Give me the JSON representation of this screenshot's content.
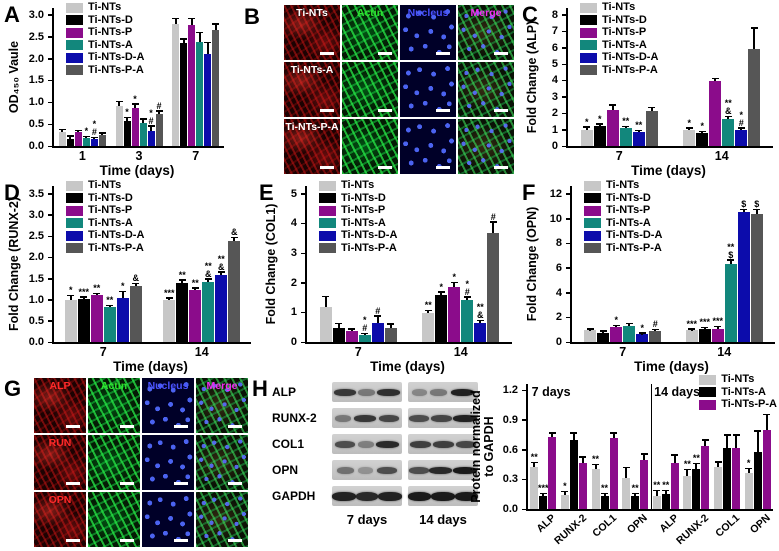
{
  "letters": {
    "A": "A",
    "B": "B",
    "C": "C",
    "D": "D",
    "E": "E",
    "F": "F",
    "G": "G",
    "H": "H"
  },
  "group_colors": {
    "Ti-NTs": "#c7c7c7",
    "Ti-NTs-D": "#000000",
    "Ti-NTs-P": "#8b0c8b",
    "Ti-NTs-A": "#12877c",
    "Ti-NTs-D-A": "#0c0cab",
    "Ti-NTs-P-A": "#565656"
  },
  "chart_data": [
    {
      "id": "A",
      "type": "bar",
      "title": "",
      "xlabel": "Time (days)",
      "ylabel": "OD₄₅₀ Vaule",
      "categories": [
        "1",
        "3",
        "7"
      ],
      "yticks": [
        "0.0",
        "0.5",
        "1.0",
        "1.5",
        "2.0",
        "2.5",
        "3.0"
      ],
      "ylim": [
        0,
        3.0
      ],
      "legend_pos": "top-left",
      "grid": false,
      "series": [
        {
          "name": "Ti-NTs",
          "color": "#c7c7c7",
          "values": [
            0.33,
            0.92,
            2.8
          ],
          "err": [
            0.03,
            0.08,
            0.1
          ],
          "markers": [
            "",
            "",
            ""
          ]
        },
        {
          "name": "Ti-NTs-D",
          "color": "#000000",
          "values": [
            0.17,
            0.57,
            2.35
          ],
          "err": [
            0.04,
            0.06,
            0.08
          ],
          "markers": [
            "",
            "*",
            ""
          ]
        },
        {
          "name": "Ti-NTs-P",
          "color": "#8b0c8b",
          "values": [
            0.31,
            0.88,
            2.78
          ],
          "err": [
            0.03,
            0.06,
            0.12
          ],
          "markers": [
            "",
            "*",
            ""
          ]
        },
        {
          "name": "Ti-NTs-A",
          "color": "#12877c",
          "values": [
            0.18,
            0.53,
            2.38
          ],
          "err": [
            0.02,
            0.07,
            0.2
          ],
          "markers": [
            "*",
            "",
            ""
          ]
        },
        {
          "name": "Ti-NTs-D-A",
          "color": "#0c0cab",
          "values": [
            0.15,
            0.35,
            2.1
          ],
          "err": [
            0.03,
            0.09,
            0.25
          ],
          "markers": [
            "*\n#",
            "*\n#",
            ""
          ]
        },
        {
          "name": "Ti-NTs-P-A",
          "color": "#565656",
          "values": [
            0.26,
            0.73,
            2.65
          ],
          "err": [
            0.02,
            0.05,
            0.13
          ],
          "markers": [
            "",
            "#",
            ""
          ]
        }
      ]
    },
    {
      "id": "C",
      "type": "bar",
      "title": "",
      "xlabel": "Time (days)",
      "ylabel": "Fold Change (ALP)",
      "categories": [
        "7",
        "14"
      ],
      "yticks": [
        "0",
        "1",
        "2",
        "3",
        "4",
        "5",
        "6",
        "7",
        "8"
      ],
      "ylim": [
        0,
        8
      ],
      "legend_pos": "top-left",
      "grid": false,
      "series": [
        {
          "name": "Ti-NTs",
          "color": "#c7c7c7",
          "values": [
            1.0,
            0.95
          ],
          "err": [
            0.12,
            0.1
          ],
          "markers": [
            "*",
            "*"
          ]
        },
        {
          "name": "Ti-NTs-D",
          "color": "#000000",
          "values": [
            1.2,
            0.8
          ],
          "err": [
            0.1,
            0.05
          ],
          "markers": [
            "*",
            "*"
          ]
        },
        {
          "name": "Ti-NTs-P",
          "color": "#8b0c8b",
          "values": [
            2.2,
            3.98
          ],
          "err": [
            0.25,
            0.08
          ],
          "markers": [
            "",
            ""
          ]
        },
        {
          "name": "Ti-NTs-A",
          "color": "#12877c",
          "values": [
            1.1,
            1.63
          ],
          "err": [
            0.05,
            0.12
          ],
          "markers": [
            "**",
            "**\n&"
          ]
        },
        {
          "name": "Ti-NTs-D-A",
          "color": "#0c0cab",
          "values": [
            0.85,
            0.95
          ],
          "err": [
            0.04,
            0.1
          ],
          "markers": [
            "**",
            "*\n#"
          ]
        },
        {
          "name": "Ti-NTs-P-A",
          "color": "#565656",
          "values": [
            2.15,
            5.95
          ],
          "err": [
            0.15,
            1.2
          ],
          "markers": [
            "",
            ""
          ]
        }
      ]
    },
    {
      "id": "D",
      "type": "bar",
      "title": "",
      "xlabel": "Time (days)",
      "ylabel": "Fold Change (RUNX-2)",
      "categories": [
        "7",
        "14"
      ],
      "yticks": [
        "0.0",
        "0.5",
        "1.0",
        "1.5",
        "2.0",
        "2.5",
        "3.0",
        "3.5"
      ],
      "ylim": [
        0,
        3.5
      ],
      "legend_pos": "top-left",
      "grid": false,
      "series": [
        {
          "name": "Ti-NTs",
          "color": "#c7c7c7",
          "values": [
            1.0,
            1.0
          ],
          "err": [
            0.08,
            0.02
          ],
          "markers": [
            "*",
            "***"
          ]
        },
        {
          "name": "Ti-NTs-D",
          "color": "#000000",
          "values": [
            1.02,
            1.4
          ],
          "err": [
            0.02,
            0.05
          ],
          "markers": [
            "***",
            "**"
          ]
        },
        {
          "name": "Ti-NTs-P",
          "color": "#8b0c8b",
          "values": [
            1.1,
            1.22
          ],
          "err": [
            0.03,
            0.04
          ],
          "markers": [
            "**",
            "**"
          ]
        },
        {
          "name": "Ti-NTs-A",
          "color": "#12877c",
          "values": [
            0.82,
            1.42
          ],
          "err": [
            0.03,
            0.05
          ],
          "markers": [
            "**",
            "**\n&"
          ]
        },
        {
          "name": "Ti-NTs-D-A",
          "color": "#0c0cab",
          "values": [
            1.05,
            1.58
          ],
          "err": [
            0.12,
            0.05
          ],
          "markers": [
            "*",
            "**\n&"
          ]
        },
        {
          "name": "Ti-NTs-P-A",
          "color": "#565656",
          "values": [
            1.33,
            2.38
          ],
          "err": [
            0.04,
            0.07
          ],
          "markers": [
            "&",
            "&"
          ]
        }
      ]
    },
    {
      "id": "E",
      "type": "bar",
      "title": "",
      "xlabel": "Time (days)",
      "ylabel": "Fold Change (COL1)",
      "categories": [
        "7",
        "14"
      ],
      "yticks": [
        "0",
        "1",
        "2",
        "3",
        "4",
        "5"
      ],
      "ylim": [
        0,
        5
      ],
      "legend_pos": "top-left",
      "grid": false,
      "series": [
        {
          "name": "Ti-NTs",
          "color": "#c7c7c7",
          "values": [
            1.18,
            0.98
          ],
          "err": [
            0.33,
            0.05
          ],
          "markers": [
            "",
            "**"
          ]
        },
        {
          "name": "Ti-NTs-D",
          "color": "#000000",
          "values": [
            0.48,
            1.57
          ],
          "err": [
            0.12,
            0.1
          ],
          "markers": [
            "",
            "*"
          ]
        },
        {
          "name": "Ti-NTs-P",
          "color": "#8b0c8b",
          "values": [
            0.37,
            1.85
          ],
          "err": [
            0.05,
            0.13
          ],
          "markers": [
            "",
            "*"
          ]
        },
        {
          "name": "Ti-NTs-A",
          "color": "#12877c",
          "values": [
            0.22,
            1.42
          ],
          "err": [
            0.05,
            0.08
          ],
          "markers": [
            "*\n#",
            "*\n#"
          ]
        },
        {
          "name": "Ti-NTs-D-A",
          "color": "#0c0cab",
          "values": [
            0.65,
            0.65
          ],
          "err": [
            0.2,
            0.05
          ],
          "markers": [
            "#",
            "**\n&"
          ]
        },
        {
          "name": "Ti-NTs-P-A",
          "color": "#565656",
          "values": [
            0.48,
            3.68
          ],
          "err": [
            0.1,
            0.35
          ],
          "markers": [
            "",
            "#"
          ]
        }
      ]
    },
    {
      "id": "F",
      "type": "bar",
      "title": "",
      "xlabel": "Time (days)",
      "ylabel": "Fold Change (OPN)",
      "categories": [
        "7",
        "14"
      ],
      "yticks": [
        "0",
        "2",
        "4",
        "6",
        "8",
        "10",
        "12"
      ],
      "ylim": [
        0,
        12
      ],
      "legend_pos": "top-left",
      "grid": false,
      "series": [
        {
          "name": "Ti-NTs",
          "color": "#c7c7c7",
          "values": [
            0.95,
            0.95
          ],
          "err": [
            0.05,
            0.05
          ],
          "markers": [
            "",
            "***"
          ]
        },
        {
          "name": "Ti-NTs-D",
          "color": "#000000",
          "values": [
            0.75,
            1.05
          ],
          "err": [
            0.1,
            0.05
          ],
          "markers": [
            "",
            "***"
          ]
        },
        {
          "name": "Ti-NTs-P",
          "color": "#8b0c8b",
          "values": [
            1.2,
            1.05
          ],
          "err": [
            0.07,
            0.15
          ],
          "markers": [
            "*",
            "***"
          ]
        },
        {
          "name": "Ti-NTs-A",
          "color": "#12877c",
          "values": [
            1.3,
            6.3
          ],
          "err": [
            0.15,
            0.3
          ],
          "markers": [
            "",
            "**\n$"
          ]
        },
        {
          "name": "Ti-NTs-D-A",
          "color": "#0c0cab",
          "values": [
            0.62,
            10.5
          ],
          "err": [
            0.05,
            0.15
          ],
          "markers": [
            "*",
            "$"
          ]
        },
        {
          "name": "Ti-NTs-P-A",
          "color": "#565656",
          "values": [
            0.9,
            10.4
          ],
          "err": [
            0.07,
            0.25
          ],
          "markers": [
            "#",
            "$"
          ]
        }
      ]
    },
    {
      "id": "H",
      "type": "bar",
      "title": "",
      "xlabel": "",
      "ylabel": "Protein normalized\nto GAPDH",
      "categories": [
        "ALP",
        "RUNX-2",
        "COL1",
        "OPN",
        "ALP",
        "RUNX-2",
        "COL1",
        "OPN"
      ],
      "sections": [
        {
          "label": "7 days",
          "span": 4
        },
        {
          "label": "14 days",
          "span": 4
        }
      ],
      "yticks": [
        "0.0",
        "0.3",
        "0.6",
        "0.9",
        "1.2"
      ],
      "ylim": [
        0,
        1.2
      ],
      "legend_pos": "top-right",
      "grid": false,
      "series": [
        {
          "name": "Ti-NTs",
          "color": "#c7c7c7",
          "values": [
            0.42,
            0.14,
            0.4,
            0.31,
            0.13,
            0.33,
            0.42,
            0.36
          ],
          "err": [
            0.04,
            0.03,
            0.04,
            0.1,
            0.05,
            0.06,
            0.05,
            0.04
          ],
          "markers": [
            "**",
            "*",
            "**",
            "",
            "**",
            "**",
            "",
            "*"
          ]
        },
        {
          "name": "Ti-NTs-A",
          "color": "#000000",
          "values": [
            0.13,
            0.7,
            0.13,
            0.13,
            0.15,
            0.4,
            0.62,
            0.58
          ],
          "err": [
            0.02,
            0.06,
            0.02,
            0.02,
            0.03,
            0.05,
            0.12,
            0.2
          ],
          "markers": [
            "***",
            "",
            "**",
            "**",
            "**",
            "**",
            "",
            ""
          ]
        },
        {
          "name": "Ti-NTs-P-A",
          "color": "#8b0c8b",
          "values": [
            0.73,
            0.47,
            0.72,
            0.5,
            0.46,
            0.64,
            0.62,
            0.8
          ],
          "err": [
            0.03,
            0.05,
            0.04,
            0.05,
            0.08,
            0.05,
            0.12,
            0.15
          ],
          "markers": [
            "",
            "",
            "",
            "",
            "",
            "",
            "",
            ""
          ]
        }
      ]
    }
  ],
  "panel_b": {
    "letter": "B",
    "col_headers": [
      null,
      {
        "text": "Actin",
        "color": "#2ee52e"
      },
      {
        "text": "Nucleus",
        "color": "#4a52ff"
      },
      {
        "text": "Merge",
        "color": "#f32bf3"
      }
    ],
    "rows": [
      {
        "label": "Ti-NTs",
        "color": "#ffffff"
      },
      {
        "label": "Ti-NTs-A",
        "color": "#ffffff"
      },
      {
        "label": "Ti-NTs-P-A",
        "color": "#ffffff"
      }
    ]
  },
  "panel_g": {
    "letter": "G",
    "col_headers": [
      null,
      {
        "text": "Actin",
        "color": "#2ee52e"
      },
      {
        "text": "Nucleus",
        "color": "#4a52ff"
      },
      {
        "text": "Merge",
        "color": "#f32bf3"
      }
    ],
    "rows": [
      {
        "label": "ALP",
        "color": "#ff2a2a"
      },
      {
        "label": "RUN",
        "color": "#ff2a2a"
      },
      {
        "label": "OPN",
        "color": "#ff2a2a"
      }
    ]
  },
  "panel_h": {
    "letter": "H",
    "blot_rows": [
      {
        "label": "ALP",
        "d7": [
          0.75,
          0.3,
          0.8
        ],
        "d14": [
          0.2,
          0.3,
          0.9
        ]
      },
      {
        "label": "RUNX-2",
        "d7": [
          0.3,
          0.75,
          0.65
        ],
        "d14": [
          0.6,
          0.65,
          0.9
        ]
      },
      {
        "label": "COL1",
        "d7": [
          0.6,
          0.25,
          0.85
        ],
        "d14": [
          0.7,
          0.7,
          0.65
        ]
      },
      {
        "label": "OPN",
        "d7": [
          0.35,
          0.12,
          0.6
        ],
        "d14": [
          0.6,
          0.85,
          0.95
        ]
      },
      {
        "label": "GAPDH",
        "d7": [
          0.9,
          0.85,
          0.9
        ],
        "d14": [
          0.95,
          0.95,
          0.95
        ]
      }
    ],
    "col_labels": [
      "7 days",
      "14 days"
    ]
  }
}
